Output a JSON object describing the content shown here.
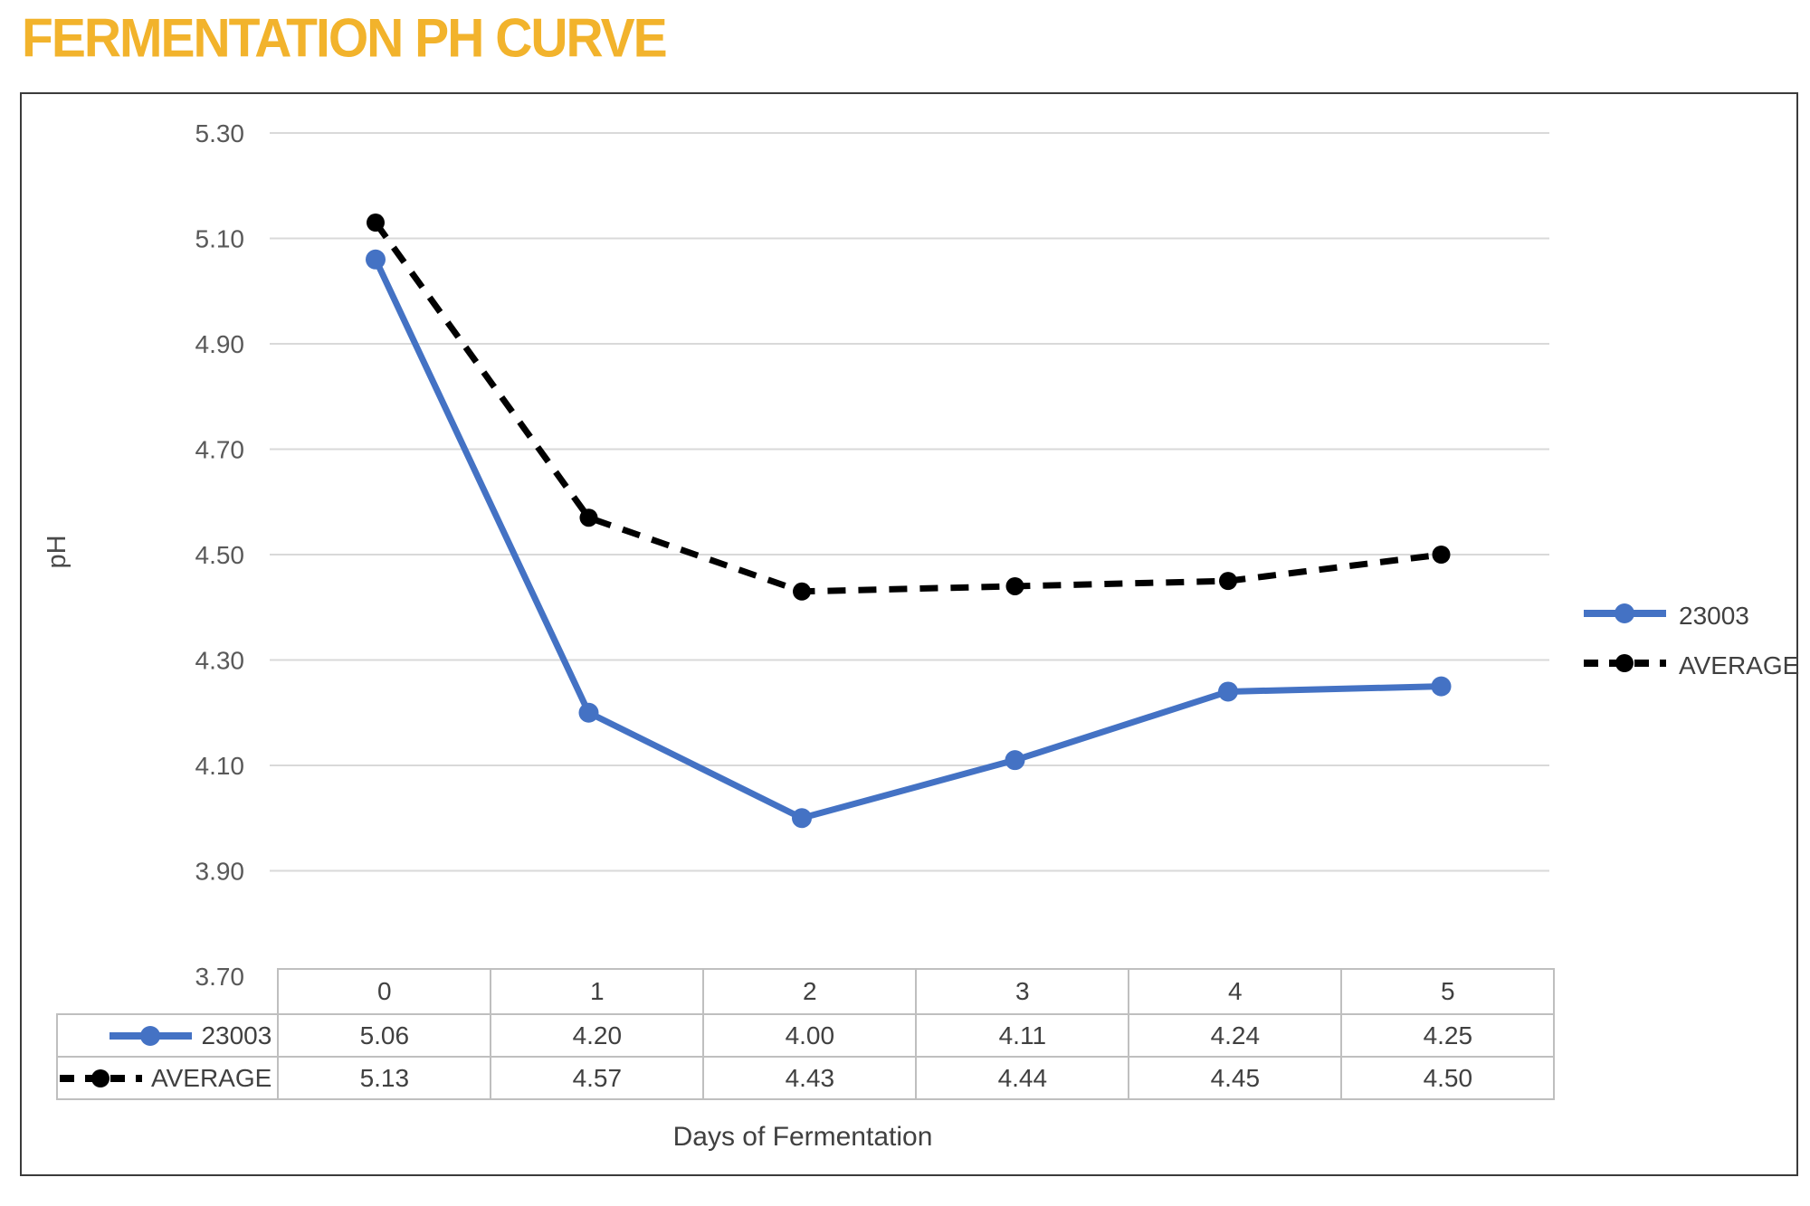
{
  "title": "FERMENTATION PH CURVE",
  "colors": {
    "title": "#F2B32C",
    "series_23003": "#4472C4",
    "series_average": "#000000",
    "gridline": "#D9D9D9",
    "tick_label": "#595959",
    "table_border": "#BFBFBF",
    "text": "#404040",
    "box_border": "#3B3B3B"
  },
  "chart_data": {
    "type": "line",
    "title": "FERMENTATION PH CURVE",
    "xlabel": "Days of Fermentation",
    "ylabel": "pH",
    "x": [
      0,
      1,
      2,
      3,
      4,
      5
    ],
    "series": [
      {
        "name": "23003",
        "values": [
          5.06,
          4.2,
          4.0,
          4.11,
          4.24,
          4.25
        ],
        "color": "#4472C4",
        "style": "solid",
        "marker": "circle"
      },
      {
        "name": "AVERAGE",
        "values": [
          5.13,
          4.57,
          4.43,
          4.44,
          4.45,
          4.5
        ],
        "color": "#000000",
        "style": "dashed",
        "marker": "circle"
      }
    ],
    "ylim": [
      3.7,
      5.3
    ],
    "ytick_step": 0.2,
    "yticks": [
      "5.30",
      "5.10",
      "4.90",
      "4.70",
      "4.50",
      "4.30",
      "4.10",
      "3.90",
      "3.70"
    ],
    "grid": true,
    "legend_position": "right",
    "data_table_shown": true
  },
  "legend": {
    "items": [
      {
        "label": "23003"
      },
      {
        "label": "AVERAGE"
      }
    ]
  },
  "table": {
    "columns": [
      "0",
      "1",
      "2",
      "3",
      "4",
      "5"
    ],
    "rows": [
      {
        "name": "23003",
        "values": [
          "5.06",
          "4.20",
          "4.00",
          "4.11",
          "4.24",
          "4.25"
        ]
      },
      {
        "name": "AVERAGE",
        "values": [
          "5.13",
          "4.57",
          "4.43",
          "4.44",
          "4.45",
          "4.50"
        ]
      }
    ]
  }
}
